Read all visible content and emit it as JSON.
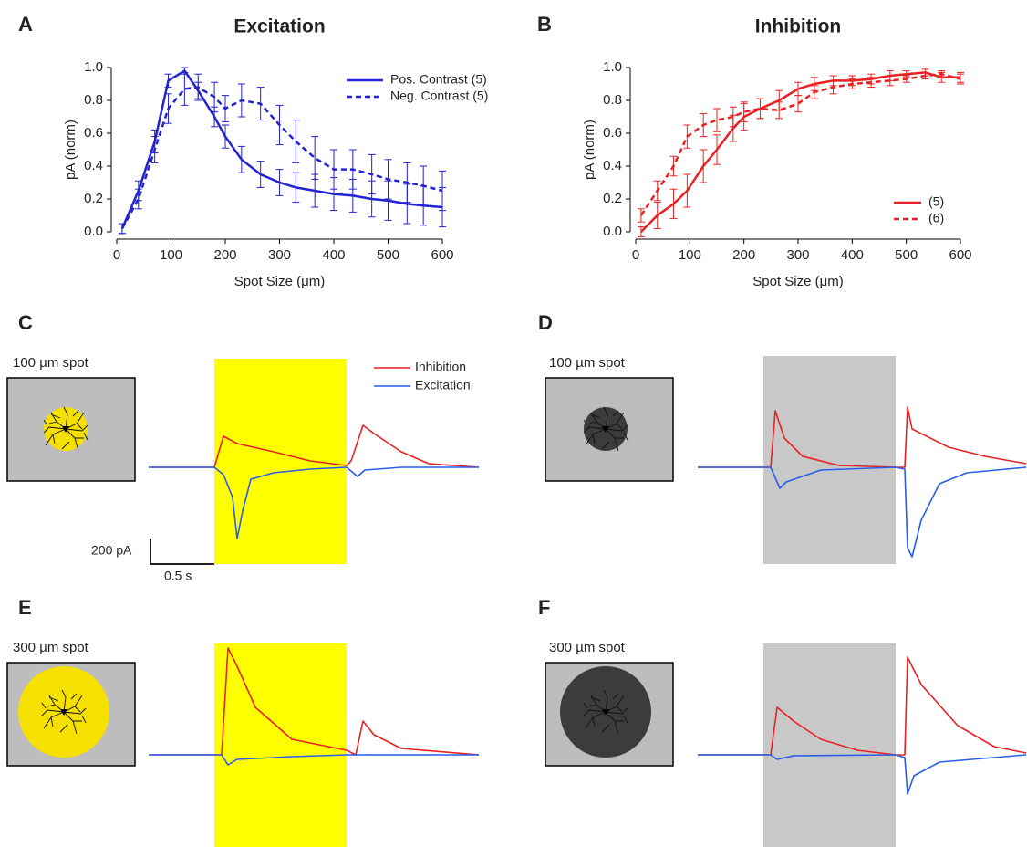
{
  "chart_data": [
    {
      "type": "line",
      "panel": "A",
      "title": "Excitation",
      "xlabel": "Spot Size (μm)",
      "ylabel": "pA (norm)",
      "x": [
        10,
        40,
        70,
        95,
        125,
        150,
        180,
        200,
        230,
        265,
        300,
        330,
        365,
        400,
        435,
        470,
        500,
        535,
        565,
        600
      ],
      "series": [
        {
          "name": "Pos. Contrast (5)",
          "color": "#2323cf",
          "dash": false,
          "values": [
            0.02,
            0.25,
            0.55,
            0.92,
            0.98,
            0.86,
            0.7,
            0.58,
            0.44,
            0.35,
            0.3,
            0.27,
            0.25,
            0.23,
            0.22,
            0.2,
            0.19,
            0.17,
            0.16,
            0.15
          ],
          "errors": [
            0.03,
            0.06,
            0.07,
            0.04,
            0.02,
            0.05,
            0.06,
            0.07,
            0.08,
            0.08,
            0.08,
            0.09,
            0.1,
            0.1,
            0.1,
            0.11,
            0.12,
            0.12,
            0.12,
            0.12
          ]
        },
        {
          "name": "Neg. Contrast (5)",
          "color": "#2323cf",
          "dash": true,
          "values": [
            0.02,
            0.2,
            0.5,
            0.75,
            0.87,
            0.88,
            0.82,
            0.75,
            0.8,
            0.78,
            0.65,
            0.55,
            0.45,
            0.38,
            0.38,
            0.35,
            0.32,
            0.3,
            0.28,
            0.25
          ],
          "errors": [
            0.03,
            0.06,
            0.08,
            0.09,
            0.1,
            0.08,
            0.09,
            0.08,
            0.1,
            0.1,
            0.12,
            0.13,
            0.13,
            0.12,
            0.12,
            0.12,
            0.12,
            0.12,
            0.12,
            0.12
          ]
        }
      ],
      "xlim": [
        0,
        600
      ],
      "xticks": [
        0,
        100,
        200,
        300,
        400,
        500,
        600
      ],
      "ylim": [
        0,
        1
      ],
      "yticks": [
        {
          "value": 0,
          "label": "0.0"
        },
        0.2,
        0.4,
        0.6,
        0.8,
        {
          "value": 1,
          "label": "1.0"
        }
      ],
      "legend": "upper right"
    },
    {
      "type": "line",
      "panel": "B",
      "title": "Inhibition",
      "xlabel": "Spot Size (μm)",
      "ylabel": "pA (norm)",
      "x": [
        10,
        40,
        70,
        95,
        125,
        150,
        180,
        200,
        230,
        265,
        300,
        330,
        365,
        400,
        435,
        470,
        500,
        535,
        565,
        600
      ],
      "series": [
        {
          "name": "(5)",
          "color": "#e82222",
          "dash": false,
          "values": [
            0.0,
            0.1,
            0.17,
            0.25,
            0.4,
            0.5,
            0.63,
            0.7,
            0.75,
            0.8,
            0.87,
            0.9,
            0.92,
            0.92,
            0.93,
            0.95,
            0.96,
            0.97,
            0.94,
            0.94
          ],
          "errors": [
            0.03,
            0.08,
            0.09,
            0.1,
            0.1,
            0.09,
            0.08,
            0.08,
            0.06,
            0.06,
            0.04,
            0.04,
            0.03,
            0.03,
            0.03,
            0.03,
            0.02,
            0.02,
            0.03,
            0.03
          ]
        },
        {
          "name": "(6)",
          "color": "#e82222",
          "dash": true,
          "values": [
            0.1,
            0.25,
            0.4,
            0.58,
            0.65,
            0.68,
            0.7,
            0.73,
            0.75,
            0.74,
            0.78,
            0.85,
            0.88,
            0.9,
            0.91,
            0.92,
            0.93,
            0.95,
            0.96,
            0.93
          ],
          "errors": [
            0.04,
            0.06,
            0.06,
            0.07,
            0.07,
            0.07,
            0.06,
            0.06,
            0.06,
            0.05,
            0.05,
            0.04,
            0.04,
            0.03,
            0.03,
            0.03,
            0.02,
            0.02,
            0.02,
            0.03
          ]
        }
      ],
      "xlim": [
        0,
        600
      ],
      "xticks": [
        0,
        100,
        200,
        300,
        400,
        500,
        600
      ],
      "ylim": [
        0,
        1
      ],
      "yticks": [
        {
          "value": 0,
          "label": "0.0"
        },
        0.2,
        0.4,
        0.6,
        0.8,
        {
          "value": 1,
          "label": "1.0"
        }
      ],
      "legend": "lower right"
    }
  ],
  "trace_panels": [
    {
      "panel": "C",
      "stimulus": "100 µm spot",
      "legend": [
        "Inhibition",
        "Excitation"
      ],
      "scale_bar": {
        "y": "200 pA",
        "x": "0.5 s"
      }
    },
    {
      "panel": "D",
      "stimulus": "100 µm spot"
    },
    {
      "panel": "E",
      "stimulus": "300 µm spot"
    },
    {
      "panel": "F",
      "stimulus": "300 µm spot"
    }
  ]
}
